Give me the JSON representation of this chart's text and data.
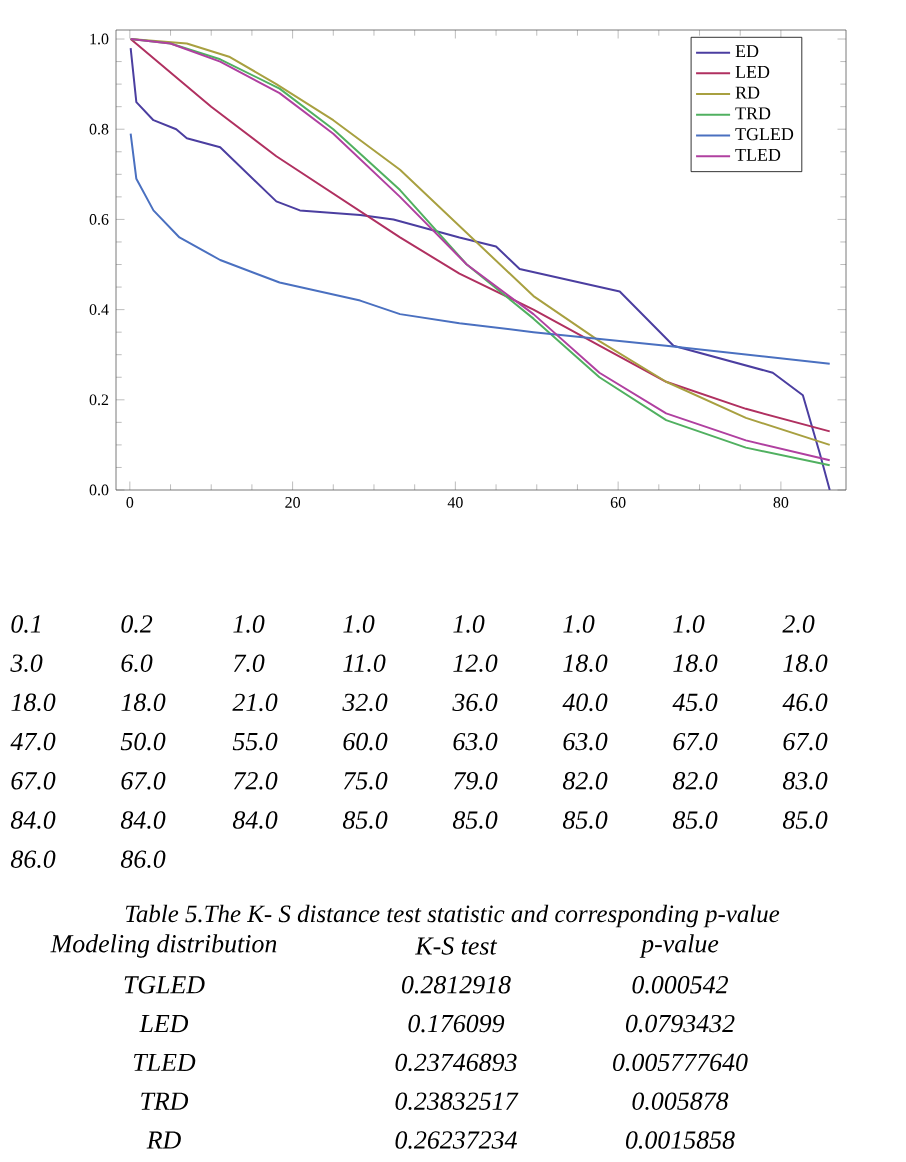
{
  "chart_data": {
    "type": "line",
    "xlim": [
      -1.7,
      88
    ],
    "ylim": [
      0,
      1.02
    ],
    "xticks": [
      0,
      20,
      40,
      60,
      80
    ],
    "yticks": [
      {
        "value": 0,
        "label": "0.0"
      },
      {
        "value": 0.2,
        "label": "0.2"
      },
      {
        "value": 0.4,
        "label": "0.4"
      },
      {
        "value": 0.6,
        "label": "0.6"
      },
      {
        "value": 0.8,
        "label": "0.8"
      },
      {
        "value": 1,
        "label": "1.0"
      }
    ],
    "legend": "top right",
    "series": [
      {
        "name": "ED",
        "color": "#4b3ea0",
        "x": [
          0.1,
          0.8,
          2.9,
          5.7,
          7.0,
          11.1,
          18.0,
          20.9,
          28.3,
          32.4,
          40.5,
          45.0,
          47.9,
          60.2,
          66.8,
          79.0,
          82.7,
          84.8,
          86.0
        ],
        "values": [
          0.98,
          0.86,
          0.82,
          0.8,
          0.78,
          0.76,
          0.64,
          0.62,
          0.61,
          0.6,
          0.56,
          0.54,
          0.49,
          0.44,
          0.32,
          0.26,
          0.21,
          0.08,
          0.0
        ]
      },
      {
        "name": "LED",
        "color": "#b03060",
        "x": [
          0.1,
          10,
          18.0,
          33.2,
          40.5,
          49.6,
          57.7,
          65.9,
          75.7,
          86.0
        ],
        "values": [
          1.0,
          0.85,
          0.74,
          0.56,
          0.48,
          0.4,
          0.32,
          0.24,
          0.18,
          0.13
        ]
      },
      {
        "name": "RD",
        "color": "#a8a040",
        "x": [
          0.1,
          7.0,
          12.3,
          18.0,
          25.0,
          33.2,
          41.4,
          49.6,
          57.7,
          65.9,
          75.7,
          86.0
        ],
        "values": [
          1.0,
          0.99,
          0.96,
          0.9,
          0.82,
          0.71,
          0.57,
          0.43,
          0.33,
          0.24,
          0.16,
          0.1
        ]
      },
      {
        "name": "TRD",
        "color": "#50b060",
        "x": [
          0.1,
          5.0,
          11.1,
          18.4,
          25.0,
          33.2,
          41.4,
          49.6,
          57.7,
          65.9,
          75.7,
          86.0
        ],
        "values": [
          1.0,
          0.99,
          0.955,
          0.89,
          0.8,
          0.665,
          0.5,
          0.38,
          0.25,
          0.155,
          0.094,
          0.055
        ]
      },
      {
        "name": "TGLED",
        "color": "#4a70c0",
        "x": [
          0.1,
          0.8,
          2.9,
          6.1,
          11.1,
          18.4,
          28.3,
          33.2,
          40.5,
          49.6,
          65.9,
          86.0
        ],
        "values": [
          0.79,
          0.69,
          0.62,
          0.56,
          0.51,
          0.46,
          0.42,
          0.39,
          0.37,
          0.35,
          0.32,
          0.28
        ]
      },
      {
        "name": "TLED",
        "color": "#b040a0",
        "x": [
          0.1,
          5.0,
          11.1,
          18.4,
          25.0,
          33.2,
          41.4,
          49.6,
          57.7,
          65.9,
          75.7,
          86.0
        ],
        "values": [
          1.0,
          0.99,
          0.95,
          0.88,
          0.79,
          0.65,
          0.5,
          0.39,
          0.26,
          0.17,
          0.11,
          0.066
        ]
      }
    ],
    "annotations": [
      "0.1",
      "0.2",
      "1.0",
      "1.0",
      "1.0",
      "1.0",
      "1.0",
      "2.0",
      "3.0",
      "6.0",
      "7.0",
      "11.0",
      "12.0",
      "18.0",
      "18.0",
      "18.0",
      "18.0",
      "18.0",
      "21.0",
      "32.0",
      "36.0",
      "40.0",
      "45.0",
      "46.0",
      "47.0",
      "50.0",
      "55.0",
      "60.0",
      "63.0",
      "63.0",
      "67.0",
      "67.0",
      "67.0",
      "67.0",
      "72.0",
      "75.0",
      "79.0",
      "82.0",
      "82.0",
      "83.0",
      "84.0",
      "84.0",
      "84.0",
      "85.0",
      "85.0",
      "85.0",
      "85.0",
      "85.0",
      "86.0",
      "86.0",
      "Table 5.The K- S distance test statistic and corresponding p-value",
      "Modeling distribution",
      "K-S test",
      "p-value",
      "TGLED",
      "0.2812918",
      "0.000542",
      "LED",
      "0.176099",
      "0.0793432",
      "TLED",
      "0.23746893",
      "0.005777640",
      "TRD",
      "0.23832517",
      "0.005878",
      "RD",
      "0.26237234",
      "0.0015858"
    ]
  }
}
